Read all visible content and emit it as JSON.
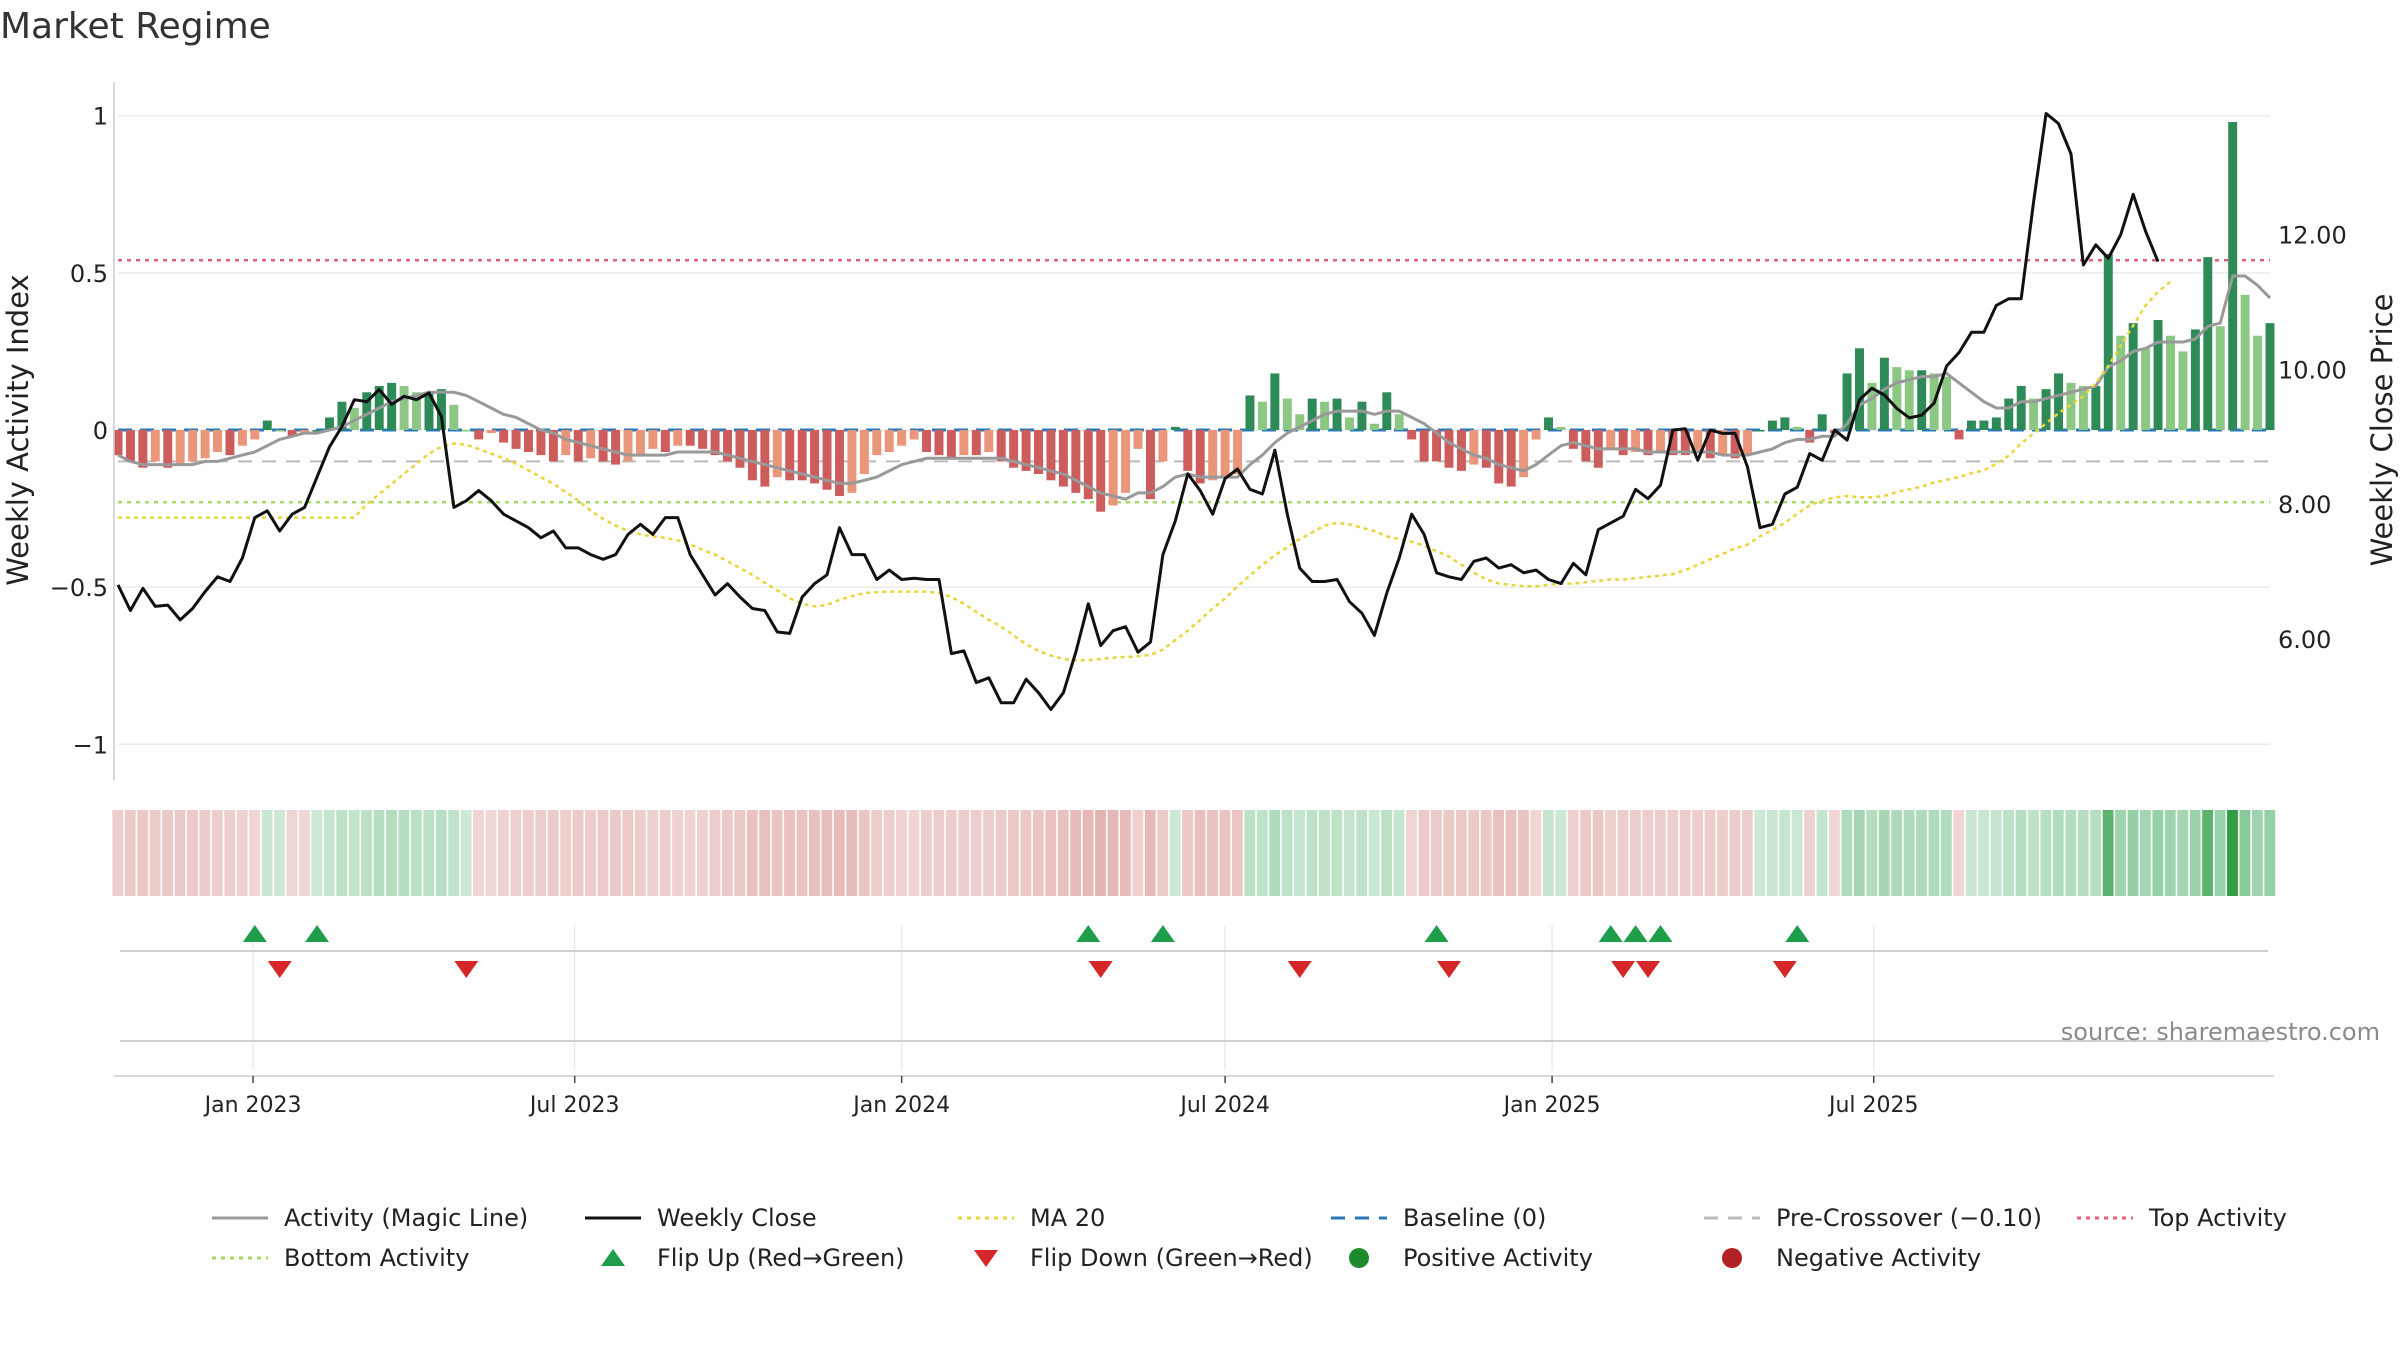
{
  "title": "Market Regime",
  "source": "source: sharemaestro.com",
  "left_axis": {
    "label": "Weekly Activity Index",
    "ticks": [
      "1",
      "0.5",
      "0",
      "−0.5",
      "−1"
    ],
    "range": [
      -1.05,
      1.05
    ]
  },
  "right_axis": {
    "label": "Weekly Close Price",
    "ticks": [
      "12.00",
      "10.00",
      "8.00",
      "6.00"
    ],
    "range": [
      4.2,
      14.0
    ]
  },
  "x_axis": {
    "ticks": [
      "Jan 2023",
      "Jul 2023",
      "Jan 2024",
      "Jul 2024",
      "Jan 2025",
      "Jul 2025"
    ]
  },
  "legend": [
    {
      "label": "Activity (Magic Line)",
      "kind": "line",
      "color": "#999999",
      "dash": "none"
    },
    {
      "label": "Weekly Close",
      "kind": "line",
      "color": "#111111",
      "dash": "none"
    },
    {
      "label": "MA 20",
      "kind": "line",
      "color": "#e8d53a",
      "dash": "dot"
    },
    {
      "label": "Baseline (0)",
      "kind": "line",
      "color": "#2a78b8",
      "dash": "dash"
    },
    {
      "label": "Pre-Crossover (−0.10)",
      "kind": "line",
      "color": "#bbbbbb",
      "dash": "dash"
    },
    {
      "label": "Top Activity",
      "kind": "line",
      "color": "#e0607a",
      "dash": "dot"
    },
    {
      "label": "Bottom Activity",
      "kind": "line",
      "color": "#a6d96a",
      "dash": "dot"
    },
    {
      "label": "Flip Up (Red→Green)",
      "kind": "tri-up",
      "color": "#1e9e4a",
      "dash": "none"
    },
    {
      "label": "Flip Down (Green→Red)",
      "kind": "tri-down",
      "color": "#d62728",
      "dash": "none"
    },
    {
      "label": "Positive Activity",
      "kind": "dot",
      "color": "#1e8a2e",
      "dash": "none"
    },
    {
      "label": "Negative Activity",
      "kind": "dot",
      "color": "#b22222",
      "dash": "none"
    }
  ],
  "colors": {
    "strong_pos": "#2e8b57",
    "weak_pos": "#8cc784",
    "strong_neg": "#cd5c5c",
    "weak_neg": "#e9967a",
    "grid": "#ececec",
    "top_line": "#e0607a",
    "bottom_line": "#a6d96a",
    "pre_cross": "#bbbbbb",
    "baseline": "#2a78b8"
  },
  "chart_data": {
    "type": "bar",
    "x_start": "2022-10-17",
    "interval": "weekly",
    "reference_lines": {
      "top_activity": 0.54,
      "bottom_activity": -0.23,
      "pre_crossover": -0.1,
      "baseline": 0
    },
    "series": [
      {
        "name": "Weekly Activity Index",
        "axis": "left",
        "kind": "bar",
        "values": [
          -0.08,
          -0.1,
          -0.12,
          -0.1,
          -0.12,
          -0.11,
          -0.1,
          -0.09,
          -0.07,
          -0.08,
          -0.05,
          -0.03,
          0.03,
          0.0,
          -0.02,
          -0.01,
          0.0,
          0.04,
          0.09,
          0.07,
          0.12,
          0.14,
          0.15,
          0.14,
          0.12,
          0.12,
          0.13,
          0.08,
          0.0,
          -0.03,
          -0.01,
          -0.04,
          -0.06,
          -0.07,
          -0.08,
          -0.1,
          -0.08,
          -0.1,
          -0.09,
          -0.1,
          -0.11,
          -0.1,
          -0.08,
          -0.06,
          -0.07,
          -0.05,
          -0.05,
          -0.06,
          -0.08,
          -0.1,
          -0.12,
          -0.16,
          -0.18,
          -0.15,
          -0.16,
          -0.16,
          -0.17,
          -0.19,
          -0.21,
          -0.2,
          -0.14,
          -0.08,
          -0.07,
          -0.05,
          -0.03,
          -0.07,
          -0.08,
          -0.09,
          -0.08,
          -0.08,
          -0.07,
          -0.1,
          -0.12,
          -0.13,
          -0.14,
          -0.16,
          -0.18,
          -0.2,
          -0.22,
          -0.26,
          -0.24,
          -0.2,
          -0.06,
          -0.22,
          -0.1,
          0.01,
          -0.13,
          -0.17,
          -0.16,
          -0.15,
          -0.14,
          0.11,
          0.09,
          0.18,
          0.1,
          0.05,
          0.1,
          0.09,
          0.1,
          0.04,
          0.09,
          0.02,
          0.12,
          0.05,
          -0.03,
          -0.1,
          -0.1,
          -0.12,
          -0.13,
          -0.11,
          -0.12,
          -0.17,
          -0.18,
          -0.15,
          -0.03,
          0.04,
          0.01,
          -0.06,
          -0.1,
          -0.12,
          -0.06,
          -0.08,
          -0.07,
          -0.08,
          -0.07,
          -0.08,
          -0.08,
          -0.07,
          -0.09,
          -0.08,
          -0.09,
          -0.08,
          0.0,
          0.03,
          0.04,
          0.01,
          -0.04,
          0.05,
          -0.01,
          0.18,
          0.26,
          0.15,
          0.23,
          0.2,
          0.19,
          0.19,
          0.18,
          0.17,
          -0.03,
          0.03,
          0.03,
          0.04,
          0.1,
          0.14,
          0.1,
          0.13,
          0.18,
          0.15,
          0.14,
          0.14,
          0.56,
          0.3,
          0.34,
          0.26,
          0.35,
          0.3,
          0.25,
          0.32,
          0.55,
          0.33,
          0.98,
          0.43,
          0.3,
          0.34
        ]
      },
      {
        "name": "Activity (Magic Line)",
        "axis": "left",
        "kind": "line",
        "values": [
          -0.08,
          -0.1,
          -0.11,
          -0.11,
          -0.11,
          -0.11,
          -0.11,
          -0.1,
          -0.1,
          -0.09,
          -0.08,
          -0.07,
          -0.05,
          -0.03,
          -0.02,
          -0.01,
          -0.01,
          0.0,
          0.01,
          0.03,
          0.05,
          0.07,
          0.09,
          0.1,
          0.11,
          0.12,
          0.12,
          0.12,
          0.11,
          0.09,
          0.07,
          0.05,
          0.04,
          0.02,
          0.0,
          -0.01,
          -0.03,
          -0.04,
          -0.05,
          -0.06,
          -0.07,
          -0.08,
          -0.08,
          -0.08,
          -0.08,
          -0.07,
          -0.07,
          -0.07,
          -0.07,
          -0.08,
          -0.09,
          -0.1,
          -0.11,
          -0.12,
          -0.13,
          -0.14,
          -0.15,
          -0.16,
          -0.17,
          -0.17,
          -0.16,
          -0.15,
          -0.13,
          -0.11,
          -0.1,
          -0.09,
          -0.09,
          -0.09,
          -0.09,
          -0.09,
          -0.09,
          -0.09,
          -0.1,
          -0.11,
          -0.12,
          -0.13,
          -0.14,
          -0.16,
          -0.18,
          -0.2,
          -0.21,
          -0.22,
          -0.2,
          -0.2,
          -0.18,
          -0.15,
          -0.14,
          -0.15,
          -0.15,
          -0.15,
          -0.15,
          -0.11,
          -0.08,
          -0.04,
          -0.01,
          0.01,
          0.03,
          0.05,
          0.06,
          0.06,
          0.06,
          0.05,
          0.06,
          0.06,
          0.04,
          0.02,
          -0.01,
          -0.04,
          -0.06,
          -0.08,
          -0.09,
          -0.11,
          -0.12,
          -0.13,
          -0.11,
          -0.08,
          -0.05,
          -0.04,
          -0.05,
          -0.06,
          -0.06,
          -0.06,
          -0.06,
          -0.07,
          -0.07,
          -0.07,
          -0.07,
          -0.07,
          -0.07,
          -0.08,
          -0.08,
          -0.08,
          -0.07,
          -0.06,
          -0.04,
          -0.03,
          -0.03,
          -0.02,
          -0.02,
          0.02,
          0.08,
          0.1,
          0.13,
          0.15,
          0.16,
          0.17,
          0.17,
          0.18,
          0.15,
          0.12,
          0.09,
          0.07,
          0.07,
          0.09,
          0.09,
          0.1,
          0.11,
          0.12,
          0.13,
          0.14,
          0.2,
          0.22,
          0.25,
          0.26,
          0.28,
          0.28,
          0.28,
          0.29,
          0.33,
          0.34,
          0.49,
          0.49,
          0.46,
          0.42
        ]
      },
      {
        "name": "Weekly Close",
        "axis": "right",
        "kind": "line",
        "values": [
          6.8,
          6.42,
          6.75,
          6.48,
          6.5,
          6.28,
          6.45,
          6.7,
          6.92,
          6.85,
          7.2,
          7.8,
          7.9,
          7.6,
          7.85,
          7.95,
          8.4,
          8.85,
          9.15,
          9.55,
          9.52,
          9.7,
          9.48,
          9.6,
          9.55,
          9.65,
          9.3,
          7.95,
          8.05,
          8.2,
          8.05,
          7.85,
          7.75,
          7.65,
          7.5,
          7.6,
          7.35,
          7.35,
          7.25,
          7.18,
          7.25,
          7.55,
          7.7,
          7.55,
          7.8,
          7.8,
          7.25,
          6.95,
          6.65,
          6.82,
          6.62,
          6.45,
          6.42,
          6.1,
          6.08,
          6.62,
          6.82,
          6.95,
          7.65,
          7.25,
          7.25,
          6.88,
          7.02,
          6.88,
          6.9,
          6.88,
          6.88,
          5.78,
          5.82,
          5.35,
          5.42,
          5.05,
          5.05,
          5.4,
          5.2,
          4.95,
          5.2,
          5.8,
          6.52,
          5.9,
          6.12,
          6.18,
          5.8,
          5.95,
          7.25,
          7.75,
          8.45,
          8.2,
          7.85,
          8.38,
          8.52,
          8.22,
          8.15,
          8.8,
          7.85,
          7.05,
          6.85,
          6.85,
          6.88,
          6.55,
          6.38,
          6.05,
          6.68,
          7.2,
          7.85,
          7.55,
          6.98,
          6.92,
          6.88,
          7.15,
          7.2,
          7.05,
          7.1,
          6.98,
          7.02,
          6.88,
          6.82,
          7.12,
          6.95,
          7.62,
          7.72,
          7.82,
          8.22,
          8.08,
          8.28,
          9.1,
          9.12,
          8.65,
          9.1,
          9.05,
          9.05,
          8.55,
          7.65,
          7.7,
          8.15,
          8.25,
          8.75,
          8.65,
          9.1,
          8.95,
          9.55,
          9.72,
          9.62,
          9.42,
          9.28,
          9.32,
          9.5,
          10.05,
          10.25,
          10.55,
          10.55,
          10.95,
          11.05,
          11.05,
          12.5,
          13.8,
          13.65,
          13.2,
          11.55,
          11.85,
          11.65,
          12.0,
          12.6,
          12.05,
          11.6
        ]
      },
      {
        "name": "MA 20",
        "axis": "right",
        "kind": "line",
        "values": [
          7.8,
          7.8,
          7.8,
          7.8,
          7.8,
          7.8,
          7.8,
          7.8,
          7.8,
          7.8,
          7.8,
          7.8,
          7.8,
          7.8,
          7.8,
          7.8,
          7.8,
          7.8,
          7.8,
          7.8,
          8.0,
          8.15,
          8.3,
          8.45,
          8.6,
          8.75,
          8.85,
          8.9,
          8.88,
          8.82,
          8.75,
          8.68,
          8.6,
          8.5,
          8.4,
          8.3,
          8.18,
          8.05,
          7.9,
          7.78,
          7.68,
          7.6,
          7.55,
          7.52,
          7.5,
          7.46,
          7.4,
          7.32,
          7.25,
          7.15,
          7.05,
          6.95,
          6.83,
          6.72,
          6.6,
          6.52,
          6.48,
          6.5,
          6.58,
          6.63,
          6.68,
          6.69,
          6.7,
          6.7,
          6.7,
          6.7,
          6.68,
          6.62,
          6.52,
          6.4,
          6.28,
          6.18,
          6.05,
          5.92,
          5.82,
          5.75,
          5.7,
          5.68,
          5.68,
          5.7,
          5.72,
          5.73,
          5.74,
          5.76,
          5.84,
          5.98,
          6.12,
          6.28,
          6.45,
          6.6,
          6.78,
          6.94,
          7.1,
          7.24,
          7.36,
          7.48,
          7.58,
          7.68,
          7.72,
          7.7,
          7.65,
          7.6,
          7.52,
          7.48,
          7.44,
          7.38,
          7.3,
          7.22,
          7.1,
          6.98,
          6.88,
          6.82,
          6.8,
          6.78,
          6.78,
          6.8,
          6.82,
          6.82,
          6.84,
          6.86,
          6.88,
          6.88,
          6.9,
          6.92,
          6.94,
          6.96,
          7.02,
          7.1,
          7.18,
          7.26,
          7.34,
          7.4,
          7.52,
          7.62,
          7.72,
          7.86,
          7.98,
          8.05,
          8.1,
          8.12,
          8.1,
          8.1,
          8.12,
          8.18,
          8.22,
          8.26,
          8.32,
          8.36,
          8.4,
          8.46,
          8.5,
          8.6,
          8.72,
          8.9,
          9.05,
          9.2,
          9.35,
          9.48,
          9.6,
          9.8,
          10.05,
          10.35,
          10.65,
          10.95,
          11.15,
          11.3
        ]
      }
    ],
    "flip_up_weeks": [
      11,
      16,
      78,
      84,
      106,
      120,
      122,
      124,
      135
    ],
    "flip_down_weeks": [
      13,
      28,
      79,
      95,
      107,
      121,
      123,
      134
    ]
  }
}
